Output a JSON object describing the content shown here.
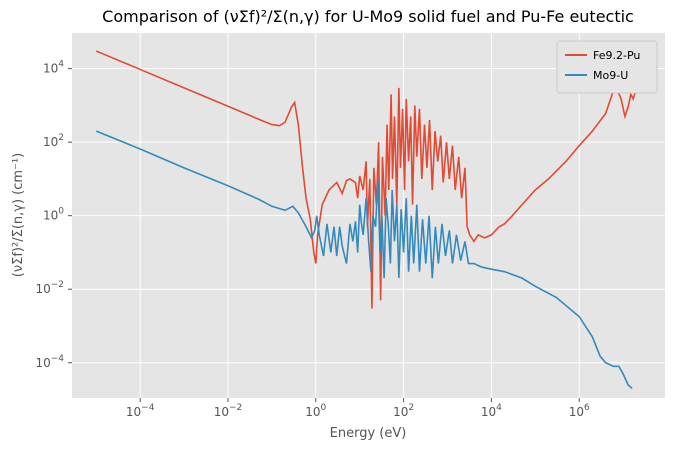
{
  "chart_data": {
    "type": "line",
    "title": "Comparison of (νΣf)²/Σ(n,γ) for U-Mo9 solid fuel and Pu-Fe eutectic",
    "xlabel": "Energy (eV)",
    "ylabel": "(νΣf)²/Σ(n,γ) (cm⁻¹)",
    "xscale": "log",
    "yscale": "log",
    "grid": true,
    "legend": "upper right",
    "xlim": [
      2.8e-06,
      90000000.0
    ],
    "ylim": [
      1.1e-05,
      93000.0
    ],
    "xticks": [
      {
        "value": 0.0001,
        "label": "10^−4"
      },
      {
        "value": 0.01,
        "label": "10^−2"
      },
      {
        "value": 1,
        "label": "10^0"
      },
      {
        "value": 100,
        "label": "10^2"
      },
      {
        "value": 10000,
        "label": "10^4"
      },
      {
        "value": 1000000,
        "label": "10^6"
      }
    ],
    "yticks": [
      {
        "value": 0.0001,
        "label": "10^−4"
      },
      {
        "value": 0.01,
        "label": "10^−2"
      },
      {
        "value": 1,
        "label": "10^0"
      },
      {
        "value": 100,
        "label": "10^2"
      },
      {
        "value": 10000,
        "label": "10^4"
      }
    ],
    "series": [
      {
        "name": "Fe9.2-Pu",
        "color": "#e24a33",
        "x": [
          1e-05,
          0.0001,
          0.001,
          0.01,
          0.05,
          0.1,
          0.15,
          0.2,
          0.28,
          0.33,
          0.4,
          0.5,
          0.6,
          0.75,
          0.9,
          1.0,
          1.1,
          1.4,
          2,
          3,
          4,
          5,
          6,
          8,
          9,
          10,
          12,
          14,
          15,
          17,
          19,
          21,
          24,
          27,
          30,
          33,
          38,
          42,
          46,
          52,
          56,
          62,
          70,
          78,
          85,
          95,
          105,
          115,
          130,
          145,
          160,
          180,
          200,
          230,
          260,
          300,
          340,
          390,
          450,
          520,
          600,
          700,
          800,
          950,
          1100,
          1300,
          1500,
          1800,
          2100,
          2500,
          2800,
          3200,
          4000,
          5000,
          7000,
          10000.0,
          15000.0,
          20000.0,
          30000.0,
          50000.0,
          100000.0,
          200000.0,
          500000.0,
          1000000.0,
          2000000.0,
          4000000.0,
          6000000.0,
          7000000.0,
          9000000.0,
          11000000.0,
          13000000.0,
          15000000.0,
          17000000.0,
          20000000.0
        ],
        "values": [
          30000,
          9500,
          3000,
          950,
          420,
          300,
          280,
          350,
          900,
          1200,
          300,
          20,
          3,
          0.8,
          0.1,
          0.05,
          0.3,
          2,
          5,
          8,
          4,
          9,
          10,
          8,
          3,
          12,
          5,
          30,
          0.5,
          10,
          0.003,
          20,
          2,
          100,
          0.005,
          40,
          1,
          300,
          5,
          2000,
          10,
          500,
          2,
          3000,
          20,
          800,
          5,
          1500,
          30,
          500,
          2,
          1000,
          40,
          800,
          10,
          300,
          20,
          400,
          5,
          200,
          30,
          150,
          8,
          100,
          10,
          80,
          5,
          40,
          3,
          20,
          0.5,
          0.3,
          0.2,
          0.3,
          0.25,
          0.3,
          0.5,
          0.6,
          1,
          2,
          5,
          10,
          30,
          80,
          200,
          600,
          2500,
          3000,
          1500,
          500,
          900,
          2000,
          1500,
          2800
        ]
      },
      {
        "name": "Mo9-U",
        "color": "#348abd",
        "x": [
          1e-05,
          0.0001,
          0.001,
          0.01,
          0.05,
          0.1,
          0.2,
          0.3,
          0.4,
          0.6,
          0.8,
          0.95,
          1.05,
          1.2,
          1.5,
          1.8,
          2.2,
          2.6,
          3,
          3.5,
          4,
          5,
          6,
          7,
          8,
          9,
          10,
          11,
          12,
          14,
          16,
          18,
          20,
          23,
          26,
          29,
          32,
          36,
          40,
          45,
          50,
          55,
          62,
          70,
          78,
          88,
          100,
          115,
          130,
          150,
          170,
          200,
          230,
          270,
          320,
          380,
          450,
          530,
          620,
          750,
          900,
          1100,
          1300,
          1600,
          2000,
          2500,
          3000,
          4000,
          6000,
          10000.0,
          20000.0,
          50000.0,
          100000.0,
          300000.0,
          1000000.0,
          2000000.0,
          3000000.0,
          4000000.0,
          6000000.0,
          8000000.0,
          10000000.0,
          13000000.0,
          16000000.0
        ],
        "values": [
          200,
          65,
          20,
          6.5,
          2.8,
          1.8,
          1.4,
          1.8,
          1.2,
          0.5,
          0.25,
          0.4,
          1,
          0.3,
          0.08,
          0.6,
          0.1,
          0.5,
          0.08,
          0.5,
          0.15,
          0.05,
          0.6,
          0.2,
          0.7,
          0.1,
          2,
          0.6,
          0.3,
          3,
          0.2,
          0.03,
          1,
          0.5,
          10,
          0.1,
          1,
          0.02,
          3,
          0.5,
          0.05,
          5,
          0.2,
          2,
          0.02,
          1.5,
          0.1,
          3,
          0.03,
          1,
          0.05,
          2,
          0.03,
          0.8,
          0.05,
          1,
          0.02,
          0.5,
          0.05,
          0.6,
          0.08,
          0.4,
          0.05,
          0.3,
          0.06,
          0.2,
          0.05,
          0.05,
          0.04,
          0.035,
          0.03,
          0.02,
          0.012,
          0.006,
          0.0018,
          0.0005,
          0.00015,
          0.0001,
          8e-05,
          8e-05,
          5e-05,
          2.5e-05,
          2e-05
        ]
      }
    ]
  }
}
